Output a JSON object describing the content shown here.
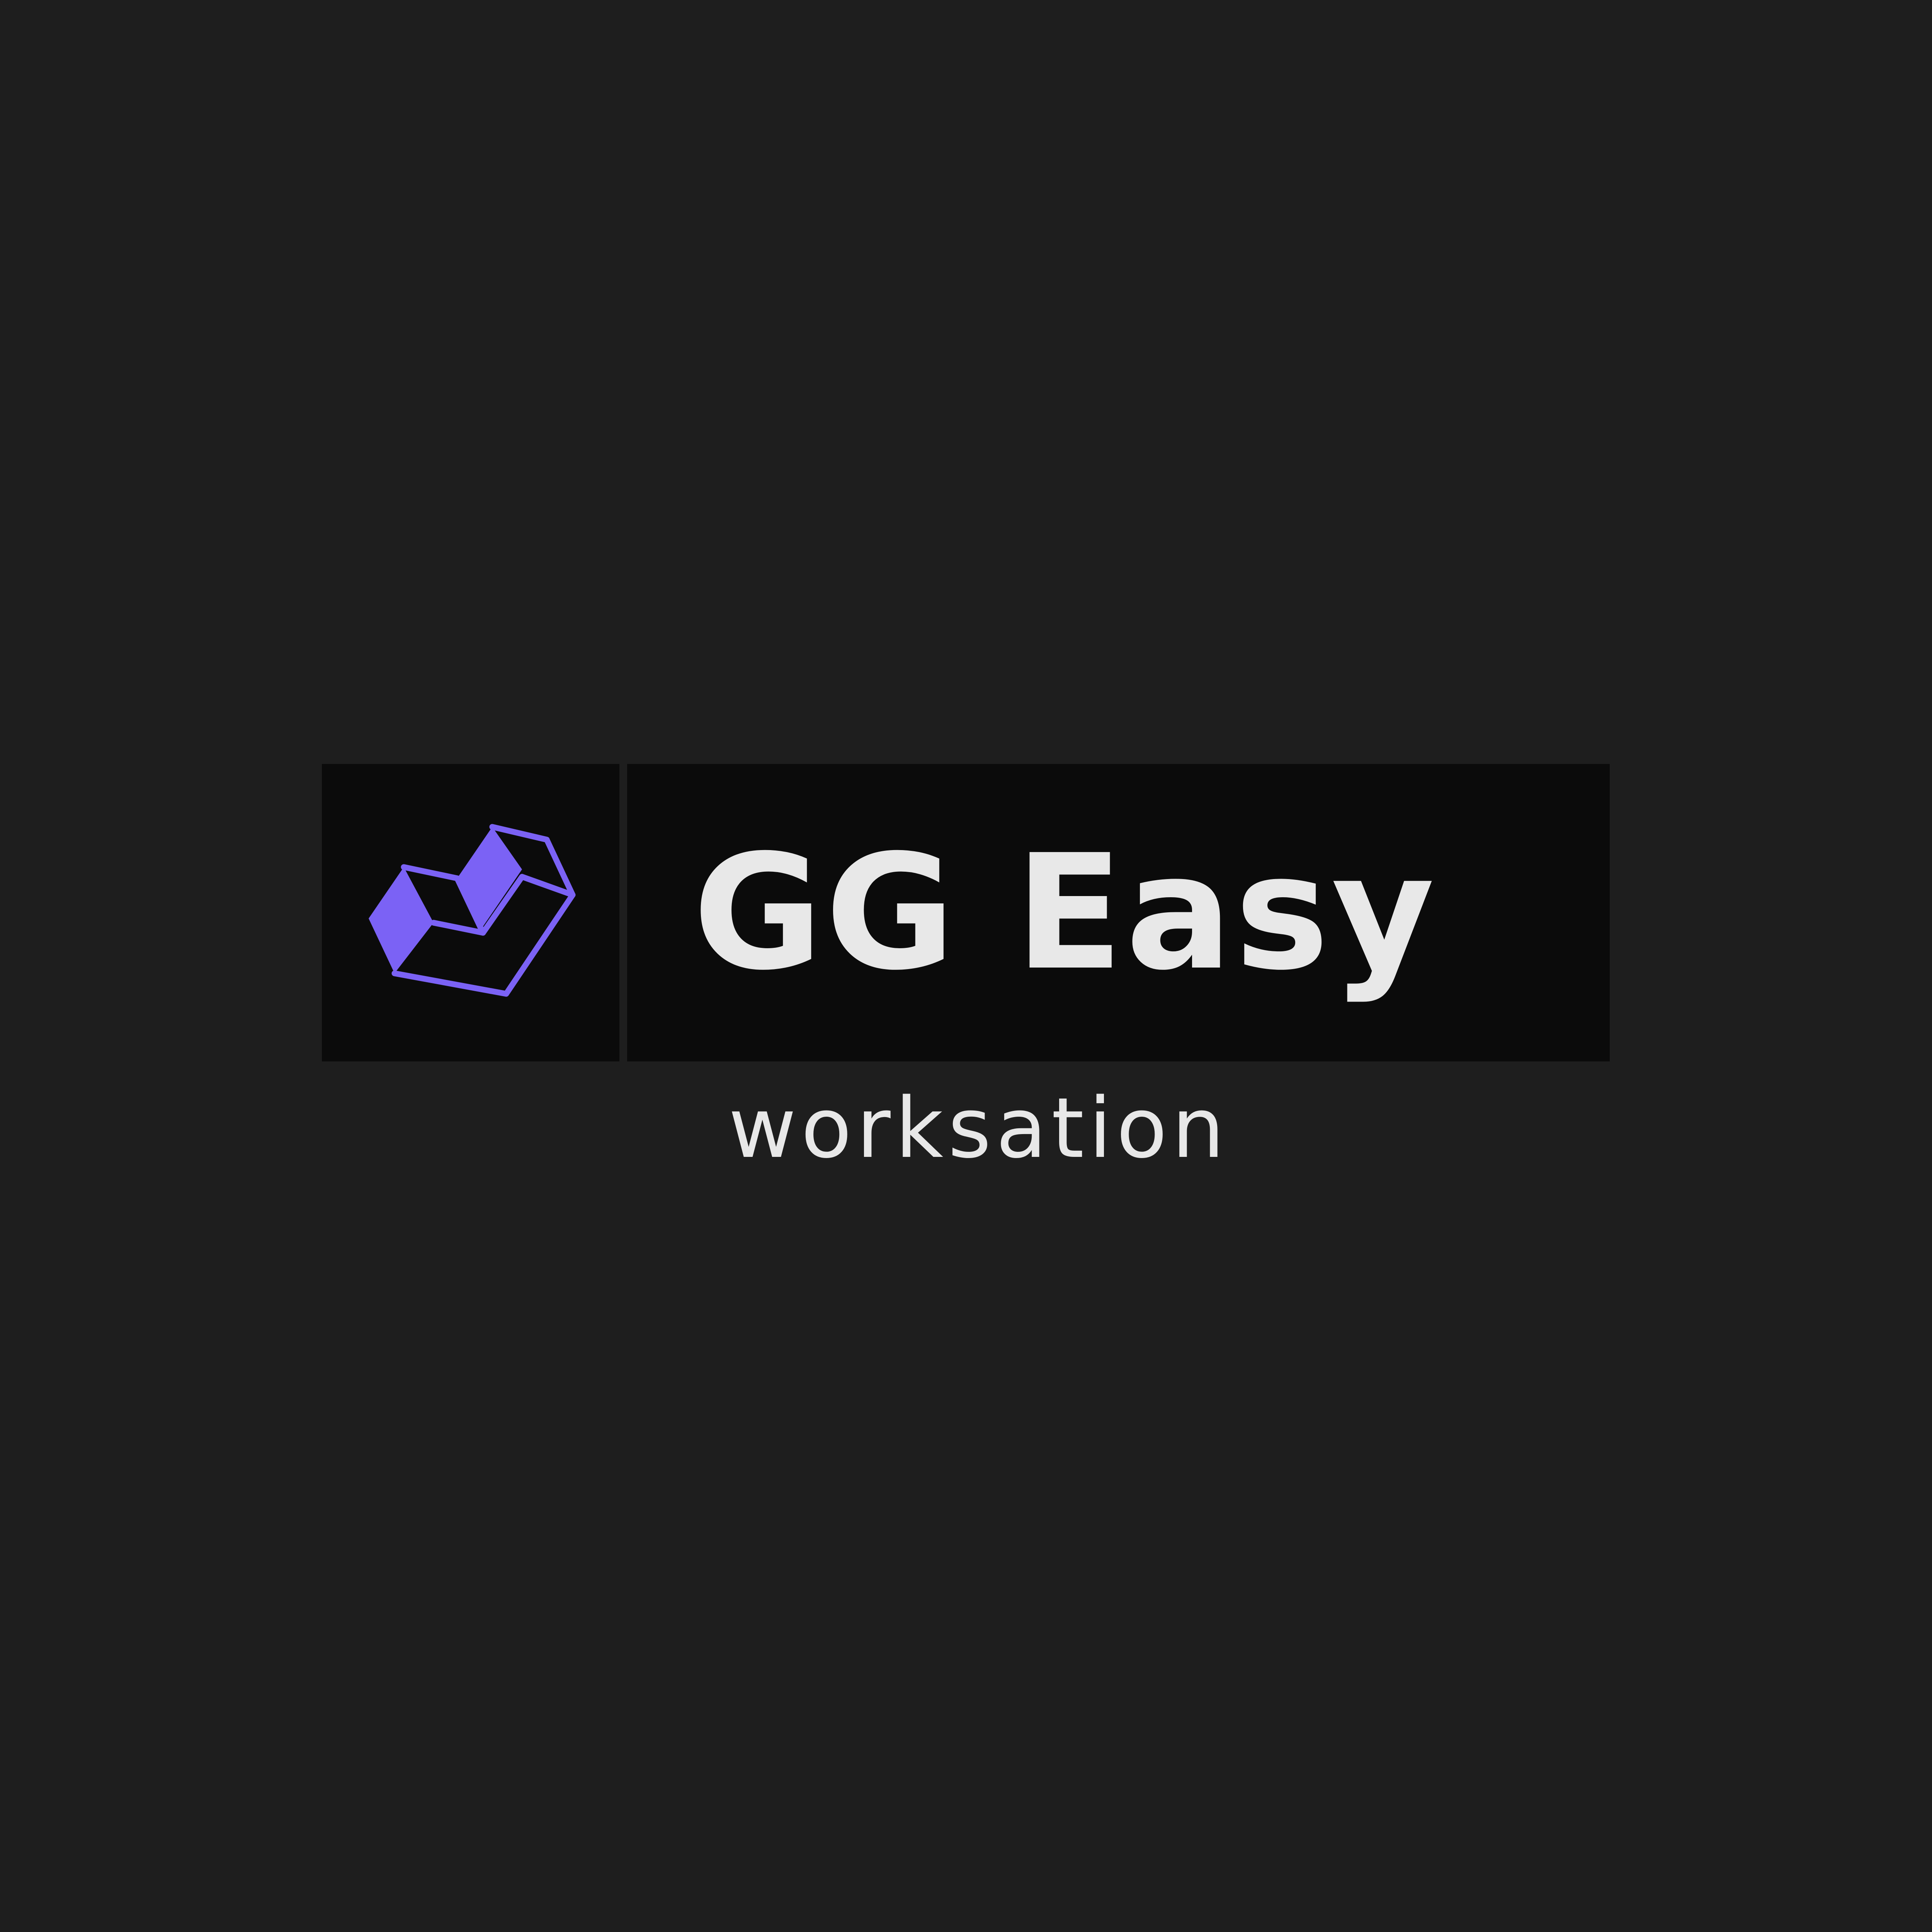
{
  "logo": {
    "title": "GG Easy",
    "subtitle": "worksation",
    "icon": "isometric-box-icon"
  },
  "colors": {
    "background": "#1e1e1e",
    "panel": "#0b0b0b",
    "accent": "#7b62f5",
    "text": "#e8e8e8"
  }
}
